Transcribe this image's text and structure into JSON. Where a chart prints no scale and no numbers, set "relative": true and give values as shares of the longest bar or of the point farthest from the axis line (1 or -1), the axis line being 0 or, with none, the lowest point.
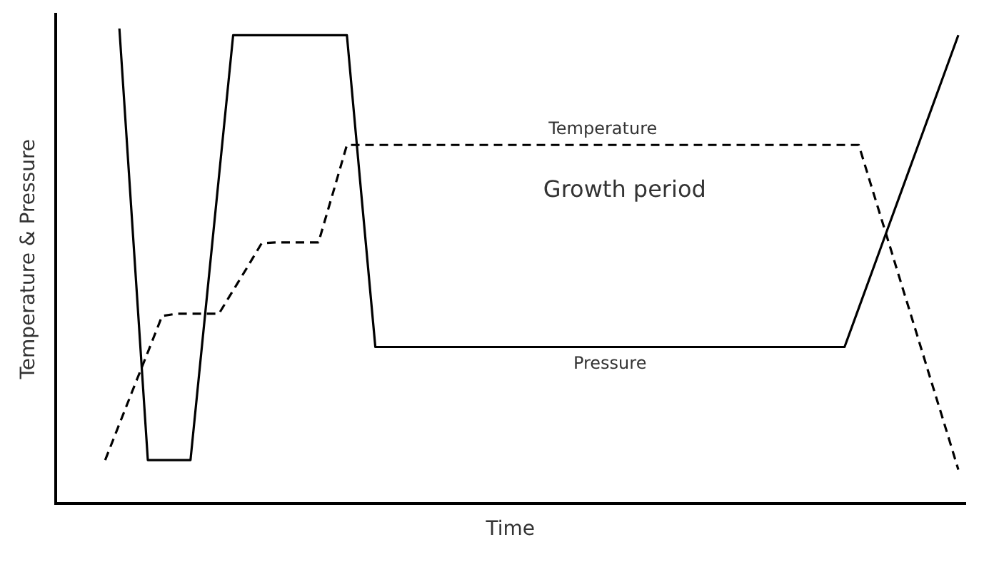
{
  "chart_data": {
    "type": "line",
    "relative": true,
    "xlabel": "Time",
    "ylabel": "Temperature & Pressure",
    "grid": false,
    "legend": false,
    "marker": "none",
    "annotations": [
      "Growth period"
    ],
    "categories": [
      null,
      null,
      null,
      null,
      null,
      null,
      null,
      null,
      null,
      null,
      null,
      null,
      null,
      null,
      null,
      null,
      null,
      null,
      null,
      null,
      null,
      null,
      null,
      null,
      null,
      null,
      null,
      null,
      null,
      null,
      null,
      null,
      null,
      null,
      null,
      null,
      null,
      null,
      null,
      null,
      null,
      null,
      null,
      null,
      null,
      null,
      null,
      null,
      null,
      null,
      null,
      null,
      null,
      null,
      null,
      null,
      null,
      null,
      null,
      null,
      null,
      null,
      null,
      null
    ],
    "series": [
      {
        "name": "Temperature",
        "color": "#000000",
        "line_style": "dashed",
        "values": [
          null,
          null,
          null,
          0.092,
          0.168,
          0.244,
          0.319,
          0.395,
          0.4,
          0.4,
          0.4,
          0.4,
          0.449,
          0.498,
          0.548,
          0.55,
          0.55,
          0.55,
          0.55,
          0.652,
          0.755,
          0.755,
          0.755,
          0.755,
          0.755,
          0.755,
          0.755,
          0.755,
          0.755,
          0.755,
          0.755,
          0.755,
          0.755,
          0.755,
          0.755,
          0.755,
          0.755,
          0.755,
          0.755,
          0.755,
          0.755,
          0.755,
          0.755,
          0.755,
          0.755,
          0.755,
          0.755,
          0.755,
          0.755,
          0.755,
          0.755,
          0.755,
          0.755,
          0.755,
          0.755,
          0.755,
          0.755,
          0.657,
          0.56,
          0.462,
          0.365,
          0.267,
          0.17,
          0.072
        ]
      },
      {
        "name": "Pressure",
        "color": "#000000",
        "line_style": "solid",
        "values": [
          null,
          null,
          null,
          null,
          1.0,
          0.546,
          0.092,
          0.092,
          0.092,
          0.092,
          0.39,
          0.688,
          0.986,
          0.986,
          0.986,
          0.986,
          0.986,
          0.986,
          0.986,
          0.986,
          0.986,
          0.656,
          0.33,
          0.33,
          0.33,
          0.33,
          0.33,
          0.33,
          0.33,
          0.33,
          0.33,
          0.33,
          0.33,
          0.33,
          0.33,
          0.33,
          0.33,
          0.33,
          0.33,
          0.33,
          0.33,
          0.33,
          0.33,
          0.33,
          0.33,
          0.33,
          0.33,
          0.33,
          0.33,
          0.33,
          0.33,
          0.33,
          0.33,
          0.33,
          0.33,
          0.33,
          0.412,
          0.494,
          0.576,
          0.658,
          0.74,
          0.822,
          0.904,
          0.986
        ]
      }
    ]
  }
}
